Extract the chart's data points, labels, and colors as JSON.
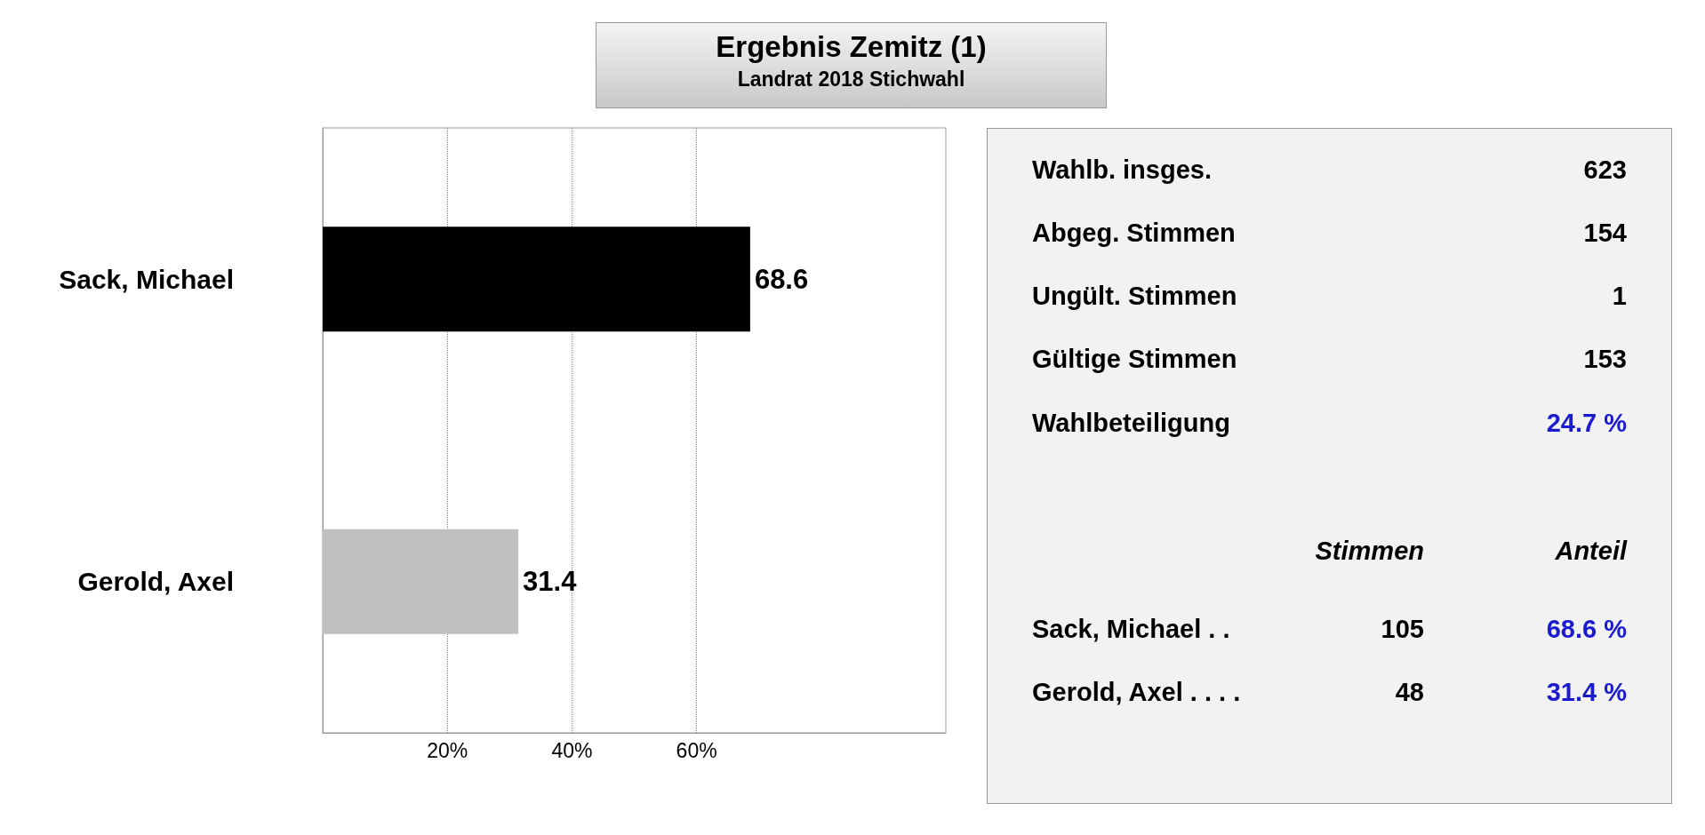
{
  "chart_data": [
    {
      "type": "bar",
      "orientation": "horizontal",
      "title": "Ergebnis Zemitz (1)",
      "subtitle": "Landrat 2018 Stichwahl",
      "categories": [
        "Sack, Michael",
        "Gerold, Axel"
      ],
      "values": [
        68.6,
        31.4
      ],
      "colors": [
        "#000000",
        "#c0c0c0"
      ],
      "data_labels": true,
      "xlim": [
        0,
        100
      ],
      "xticks": [
        {
          "value": 20,
          "label": "20%"
        },
        {
          "value": 40,
          "label": "40%"
        },
        {
          "value": 60,
          "label": "60%"
        }
      ],
      "grid": "x"
    },
    {
      "type": "other",
      "annotations": [
        "Wahlb. insges.",
        "623",
        "Abgeg. Stimmen",
        "154",
        "Ungült. Stimmen",
        "1",
        "Gültige Stimmen",
        "153",
        "Wahlbeteiligung",
        "24.7 %",
        "Stimmen",
        "Anteil",
        "Sack, Michael . .",
        "105",
        "68.6 %",
        "Gerold, Axel . . . .",
        "48",
        "31.4 %"
      ]
    }
  ]
}
